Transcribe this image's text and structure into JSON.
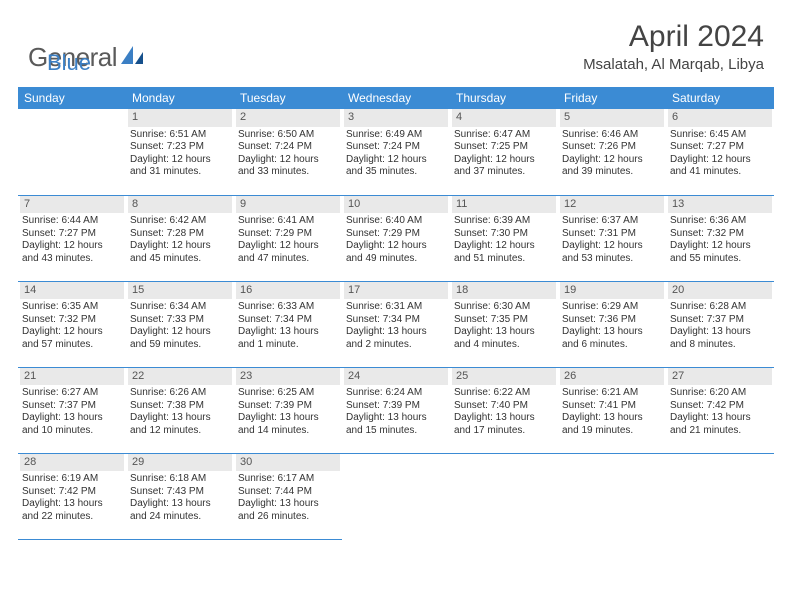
{
  "logo": {
    "part1": "General",
    "part2": "Blue"
  },
  "title": "April 2024",
  "location": "Msalatah, Al Marqab, Libya",
  "colors": {
    "header_bg": "#3b8bd4",
    "header_text": "#ffffff",
    "daynum_bg": "#e9e9e9",
    "cell_border": "#3b8bd4",
    "logo_gray": "#5a5a5a",
    "logo_blue": "#3b7fc4"
  },
  "weekdays": [
    "Sunday",
    "Monday",
    "Tuesday",
    "Wednesday",
    "Thursday",
    "Friday",
    "Saturday"
  ],
  "start_offset": 1,
  "days": [
    {
      "n": 1,
      "sr": "6:51 AM",
      "ss": "7:23 PM",
      "dl": "12 hours and 31 minutes."
    },
    {
      "n": 2,
      "sr": "6:50 AM",
      "ss": "7:24 PM",
      "dl": "12 hours and 33 minutes."
    },
    {
      "n": 3,
      "sr": "6:49 AM",
      "ss": "7:24 PM",
      "dl": "12 hours and 35 minutes."
    },
    {
      "n": 4,
      "sr": "6:47 AM",
      "ss": "7:25 PM",
      "dl": "12 hours and 37 minutes."
    },
    {
      "n": 5,
      "sr": "6:46 AM",
      "ss": "7:26 PM",
      "dl": "12 hours and 39 minutes."
    },
    {
      "n": 6,
      "sr": "6:45 AM",
      "ss": "7:27 PM",
      "dl": "12 hours and 41 minutes."
    },
    {
      "n": 7,
      "sr": "6:44 AM",
      "ss": "7:27 PM",
      "dl": "12 hours and 43 minutes."
    },
    {
      "n": 8,
      "sr": "6:42 AM",
      "ss": "7:28 PM",
      "dl": "12 hours and 45 minutes."
    },
    {
      "n": 9,
      "sr": "6:41 AM",
      "ss": "7:29 PM",
      "dl": "12 hours and 47 minutes."
    },
    {
      "n": 10,
      "sr": "6:40 AM",
      "ss": "7:29 PM",
      "dl": "12 hours and 49 minutes."
    },
    {
      "n": 11,
      "sr": "6:39 AM",
      "ss": "7:30 PM",
      "dl": "12 hours and 51 minutes."
    },
    {
      "n": 12,
      "sr": "6:37 AM",
      "ss": "7:31 PM",
      "dl": "12 hours and 53 minutes."
    },
    {
      "n": 13,
      "sr": "6:36 AM",
      "ss": "7:32 PM",
      "dl": "12 hours and 55 minutes."
    },
    {
      "n": 14,
      "sr": "6:35 AM",
      "ss": "7:32 PM",
      "dl": "12 hours and 57 minutes."
    },
    {
      "n": 15,
      "sr": "6:34 AM",
      "ss": "7:33 PM",
      "dl": "12 hours and 59 minutes."
    },
    {
      "n": 16,
      "sr": "6:33 AM",
      "ss": "7:34 PM",
      "dl": "13 hours and 1 minute."
    },
    {
      "n": 17,
      "sr": "6:31 AM",
      "ss": "7:34 PM",
      "dl": "13 hours and 2 minutes."
    },
    {
      "n": 18,
      "sr": "6:30 AM",
      "ss": "7:35 PM",
      "dl": "13 hours and 4 minutes."
    },
    {
      "n": 19,
      "sr": "6:29 AM",
      "ss": "7:36 PM",
      "dl": "13 hours and 6 minutes."
    },
    {
      "n": 20,
      "sr": "6:28 AM",
      "ss": "7:37 PM",
      "dl": "13 hours and 8 minutes."
    },
    {
      "n": 21,
      "sr": "6:27 AM",
      "ss": "7:37 PM",
      "dl": "13 hours and 10 minutes."
    },
    {
      "n": 22,
      "sr": "6:26 AM",
      "ss": "7:38 PM",
      "dl": "13 hours and 12 minutes."
    },
    {
      "n": 23,
      "sr": "6:25 AM",
      "ss": "7:39 PM",
      "dl": "13 hours and 14 minutes."
    },
    {
      "n": 24,
      "sr": "6:24 AM",
      "ss": "7:39 PM",
      "dl": "13 hours and 15 minutes."
    },
    {
      "n": 25,
      "sr": "6:22 AM",
      "ss": "7:40 PM",
      "dl": "13 hours and 17 minutes."
    },
    {
      "n": 26,
      "sr": "6:21 AM",
      "ss": "7:41 PM",
      "dl": "13 hours and 19 minutes."
    },
    {
      "n": 27,
      "sr": "6:20 AM",
      "ss": "7:42 PM",
      "dl": "13 hours and 21 minutes."
    },
    {
      "n": 28,
      "sr": "6:19 AM",
      "ss": "7:42 PM",
      "dl": "13 hours and 22 minutes."
    },
    {
      "n": 29,
      "sr": "6:18 AM",
      "ss": "7:43 PM",
      "dl": "13 hours and 24 minutes."
    },
    {
      "n": 30,
      "sr": "6:17 AM",
      "ss": "7:44 PM",
      "dl": "13 hours and 26 minutes."
    }
  ],
  "labels": {
    "sunrise": "Sunrise:",
    "sunset": "Sunset:",
    "daylight": "Daylight:"
  }
}
